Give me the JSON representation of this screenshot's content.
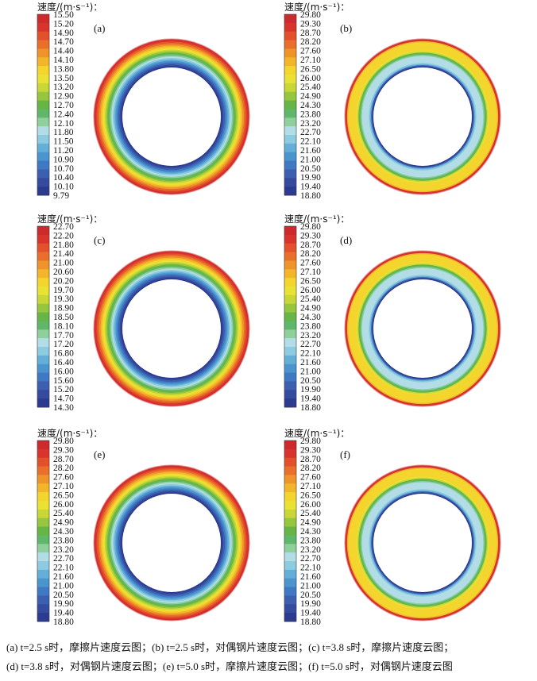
{
  "unit_title": "速度/(m·s⁻¹)：",
  "colors": [
    "#2c3a8f",
    "#344b9e",
    "#3d5fb0",
    "#3f79c4",
    "#4b95cf",
    "#63afd8",
    "#8ccbe0",
    "#b3dde6",
    "#8fcf9b",
    "#5fb86a",
    "#67b545",
    "#96c63d",
    "#c8d736",
    "#e9e235",
    "#f3d52e",
    "#f3b62b",
    "#ef942a",
    "#e96f2a",
    "#e2502c",
    "#d9342c",
    "#cc2a2c"
  ],
  "panels": [
    {
      "letter": "(a)",
      "ring": "friction",
      "ticks": [
        "15.50",
        "15.20",
        "14.90",
        "14.70",
        "14.40",
        "14.10",
        "13.80",
        "13.50",
        "13.20",
        "12.90",
        "12.70",
        "12.40",
        "12.10",
        "11.80",
        "11.50",
        "11.20",
        "10.90",
        "10.70",
        "10.40",
        "10.10",
        "9.79"
      ]
    },
    {
      "letter": "(b)",
      "ring": "steel",
      "ticks": [
        "29.80",
        "29.30",
        "28.70",
        "28.20",
        "27.60",
        "27.10",
        "26.50",
        "26.00",
        "25.40",
        "24.90",
        "24.30",
        "23.80",
        "23.20",
        "22.70",
        "22.10",
        "21.60",
        "21.00",
        "20.50",
        "19.90",
        "19.40",
        "18.80"
      ]
    },
    {
      "letter": "(c)",
      "ring": "friction",
      "ticks": [
        "22.70",
        "22.20",
        "21.80",
        "21.40",
        "21.00",
        "20.60",
        "20.20",
        "19.70",
        "19.30",
        "18.90",
        "18.50",
        "18.10",
        "17.70",
        "17.20",
        "16.80",
        "16.40",
        "16.00",
        "15.60",
        "15.20",
        "14.70",
        "14.30"
      ]
    },
    {
      "letter": "(d)",
      "ring": "steel",
      "ticks": [
        "29.80",
        "29.30",
        "28.70",
        "28.20",
        "27.60",
        "27.10",
        "26.50",
        "26.00",
        "25.40",
        "24.90",
        "24.30",
        "23.80",
        "23.20",
        "22.70",
        "22.10",
        "21.60",
        "21.00",
        "20.50",
        "19.90",
        "19.40",
        "18.80"
      ]
    },
    {
      "letter": "(e)",
      "ring": "friction",
      "ticks": [
        "29.80",
        "29.30",
        "28.70",
        "28.20",
        "27.60",
        "27.10",
        "26.50",
        "26.00",
        "25.40",
        "24.90",
        "24.30",
        "23.80",
        "23.20",
        "22.70",
        "22.10",
        "21.60",
        "21.00",
        "20.50",
        "19.90",
        "19.40",
        "18.80"
      ]
    },
    {
      "letter": "(f)",
      "ring": "steel",
      "ticks": [
        "29.80",
        "29.30",
        "28.70",
        "28.20",
        "27.60",
        "27.10",
        "26.50",
        "26.00",
        "25.40",
        "24.90",
        "24.30",
        "23.80",
        "23.20",
        "22.70",
        "22.10",
        "21.60",
        "21.00",
        "20.50",
        "19.90",
        "19.40",
        "18.80"
      ]
    }
  ],
  "caption": {
    "line1": "(a) t=2.5 s时，摩擦片速度云图；(b) t=2.5 s时，对偶钢片速度云图；(c) t=3.8 s时，摩擦片速度云图；",
    "line2": "(d) t=3.8 s时，对偶钢片速度云图；(e) t=5.0 s时，摩擦片速度云图；(f) t=5.0 s时，对偶钢片速度云图"
  }
}
